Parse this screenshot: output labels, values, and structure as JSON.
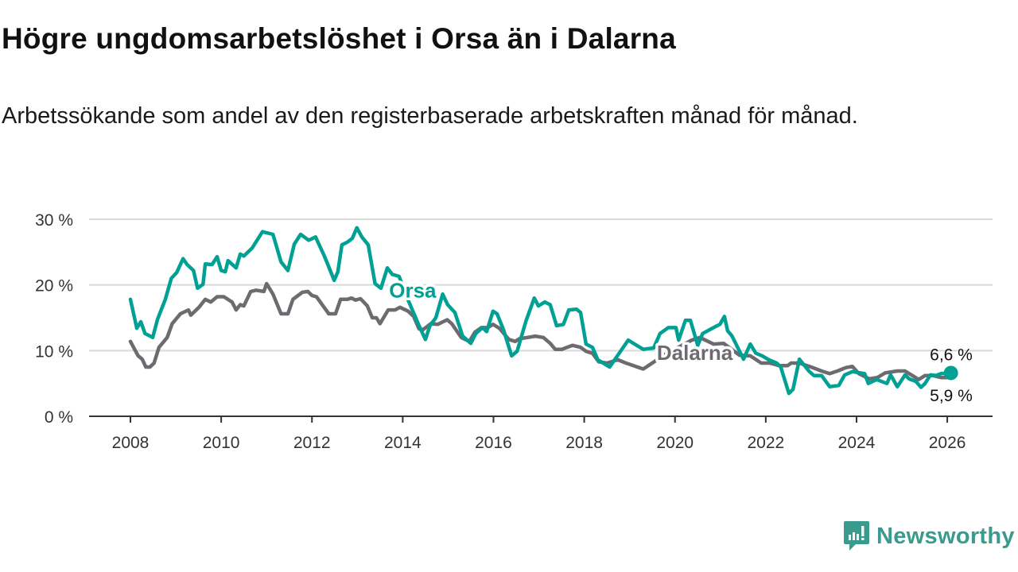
{
  "title": "Högre ungdomsarbetslöshet i Orsa än i Dalarna",
  "subtitle": "Arbetssökande som andel av den registerbaserade arbetskraften månad för månad.",
  "brand": "Newsworthy",
  "chart_data": {
    "type": "line",
    "title": "Högre ungdomsarbetslöshet i Orsa än i Dalarna",
    "xlabel": "",
    "ylabel": "",
    "xlim": [
      2007.1,
      2027.0
    ],
    "ylim": [
      0,
      30
    ],
    "x_ticks": [
      2008,
      2010,
      2012,
      2014,
      2016,
      2018,
      2020,
      2022,
      2024,
      2026
    ],
    "x_tick_labels": [
      "2008",
      "2010",
      "2012",
      "2014",
      "2016",
      "2018",
      "2020",
      "2022",
      "2024",
      "2026"
    ],
    "y_ticks": [
      0,
      10,
      20,
      30
    ],
    "y_tick_labels": [
      "0 %",
      "10 %",
      "20 %",
      "30 %"
    ],
    "grid": true,
    "series": [
      {
        "name": "Dalarna",
        "color": "#6d6a70",
        "label_at": [
          2019.6,
          8.6
        ],
        "end_label": "5,9 %",
        "points": [
          [
            2008.0,
            11.4
          ],
          [
            2008.17,
            9.2
          ],
          [
            2008.26,
            8.7
          ],
          [
            2008.34,
            7.5
          ],
          [
            2008.43,
            7.5
          ],
          [
            2008.52,
            8.1
          ],
          [
            2008.63,
            10.5
          ],
          [
            2008.81,
            12
          ],
          [
            2008.92,
            14.1
          ],
          [
            2009.1,
            15.6
          ],
          [
            2009.28,
            16.2
          ],
          [
            2009.33,
            15.4
          ],
          [
            2009.51,
            16.6
          ],
          [
            2009.65,
            17.8
          ],
          [
            2009.77,
            17.4
          ],
          [
            2009.91,
            18.2
          ],
          [
            2010.06,
            18.2
          ],
          [
            2010.24,
            17.4
          ],
          [
            2010.33,
            16.2
          ],
          [
            2010.42,
            17
          ],
          [
            2010.5,
            16.8
          ],
          [
            2010.65,
            19
          ],
          [
            2010.77,
            19.2
          ],
          [
            2010.94,
            19
          ],
          [
            2011.0,
            20.2
          ],
          [
            2011.14,
            18.6
          ],
          [
            2011.32,
            15.6
          ],
          [
            2011.47,
            15.6
          ],
          [
            2011.58,
            17.8
          ],
          [
            2011.79,
            18.9
          ],
          [
            2011.91,
            19
          ],
          [
            2012.0,
            18.4
          ],
          [
            2012.1,
            18.2
          ],
          [
            2012.37,
            15.6
          ],
          [
            2012.52,
            15.6
          ],
          [
            2012.63,
            17.8
          ],
          [
            2012.78,
            17.8
          ],
          [
            2012.87,
            18
          ],
          [
            2012.96,
            17.7
          ],
          [
            2013.07,
            17.9
          ],
          [
            2013.22,
            16.8
          ],
          [
            2013.33,
            15
          ],
          [
            2013.42,
            15
          ],
          [
            2013.5,
            14.1
          ],
          [
            2013.68,
            16.2
          ],
          [
            2013.83,
            16.2
          ],
          [
            2013.94,
            16.6
          ],
          [
            2014.12,
            16
          ],
          [
            2014.24,
            15.2
          ],
          [
            2014.36,
            13.3
          ],
          [
            2014.45,
            13.2
          ],
          [
            2014.62,
            14.1
          ],
          [
            2014.77,
            14
          ],
          [
            2014.98,
            14.7
          ],
          [
            2015.08,
            14.1
          ],
          [
            2015.29,
            12
          ],
          [
            2015.47,
            11.4
          ],
          [
            2015.59,
            12.8
          ],
          [
            2015.73,
            13.5
          ],
          [
            2015.87,
            13.5
          ],
          [
            2015.99,
            14
          ],
          [
            2016.13,
            13.4
          ],
          [
            2016.34,
            11.7
          ],
          [
            2016.48,
            11.4
          ],
          [
            2016.57,
            11.8
          ],
          [
            2016.75,
            12
          ],
          [
            2016.92,
            12.2
          ],
          [
            2017.1,
            12
          ],
          [
            2017.25,
            11.1
          ],
          [
            2017.36,
            10.2
          ],
          [
            2017.51,
            10.2
          ],
          [
            2017.62,
            10.5
          ],
          [
            2017.74,
            10.8
          ],
          [
            2017.92,
            10.5
          ],
          [
            2018.04,
            9.9
          ],
          [
            2018.18,
            9.6
          ],
          [
            2018.32,
            8.3
          ],
          [
            2018.5,
            8.1
          ],
          [
            2018.74,
            8.6
          ],
          [
            2018.92,
            8.1
          ],
          [
            2019.3,
            7.2
          ],
          [
            2019.8,
            9.5
          ],
          [
            2020.37,
            11.6
          ],
          [
            2020.55,
            12
          ],
          [
            2020.85,
            11
          ],
          [
            2021.07,
            11.1
          ],
          [
            2021.25,
            10.2
          ],
          [
            2021.42,
            9.3
          ],
          [
            2021.66,
            9.2
          ],
          [
            2021.9,
            8.1
          ],
          [
            2022.09,
            8.1
          ],
          [
            2022.3,
            7.7
          ],
          [
            2022.48,
            7.7
          ],
          [
            2022.56,
            8.1
          ],
          [
            2022.74,
            8.1
          ],
          [
            2023.0,
            7.5
          ],
          [
            2023.23,
            6.9
          ],
          [
            2023.41,
            6.5
          ],
          [
            2023.58,
            6.9
          ],
          [
            2023.76,
            7.4
          ],
          [
            2023.91,
            7.6
          ],
          [
            2024.05,
            6.5
          ],
          [
            2024.28,
            5.7
          ],
          [
            2024.46,
            5.9
          ],
          [
            2024.63,
            6.6
          ],
          [
            2024.9,
            6.9
          ],
          [
            2025.07,
            6.9
          ],
          [
            2025.23,
            6.2
          ],
          [
            2025.37,
            5.6
          ],
          [
            2025.51,
            6.2
          ],
          [
            2025.68,
            6.2
          ],
          [
            2025.86,
            5.9
          ],
          [
            2026.08,
            5.9
          ]
        ]
      },
      {
        "name": "Orsa",
        "color": "#00a194",
        "label_at": [
          2013.7,
          18.1
        ],
        "end_label": "6,6 %",
        "points": [
          [
            2008.0,
            17.8
          ],
          [
            2008.14,
            13.4
          ],
          [
            2008.23,
            14.4
          ],
          [
            2008.32,
            12.6
          ],
          [
            2008.49,
            12
          ],
          [
            2008.6,
            14.8
          ],
          [
            2008.77,
            17.8
          ],
          [
            2008.9,
            21
          ],
          [
            2009.02,
            21.9
          ],
          [
            2009.16,
            24
          ],
          [
            2009.25,
            23.1
          ],
          [
            2009.39,
            22.2
          ],
          [
            2009.48,
            19.5
          ],
          [
            2009.6,
            20.1
          ],
          [
            2009.65,
            23.2
          ],
          [
            2009.8,
            23.1
          ],
          [
            2009.91,
            24.3
          ],
          [
            2010.0,
            22.2
          ],
          [
            2010.09,
            22
          ],
          [
            2010.15,
            23.7
          ],
          [
            2010.33,
            22.6
          ],
          [
            2010.42,
            24.7
          ],
          [
            2010.5,
            24.4
          ],
          [
            2010.68,
            25.6
          ],
          [
            2010.91,
            28.1
          ],
          [
            2011.14,
            27.7
          ],
          [
            2011.32,
            23.5
          ],
          [
            2011.47,
            22.2
          ],
          [
            2011.61,
            26.2
          ],
          [
            2011.75,
            27.7
          ],
          [
            2011.93,
            26.8
          ],
          [
            2012.08,
            27.3
          ],
          [
            2012.28,
            24.3
          ],
          [
            2012.49,
            20.7
          ],
          [
            2012.57,
            22
          ],
          [
            2012.66,
            26.1
          ],
          [
            2012.78,
            26.5
          ],
          [
            2012.89,
            27.1
          ],
          [
            2012.99,
            28.7
          ],
          [
            2013.1,
            27.3
          ],
          [
            2013.24,
            26.1
          ],
          [
            2013.39,
            20.2
          ],
          [
            2013.52,
            19.5
          ],
          [
            2013.66,
            22.6
          ],
          [
            2013.77,
            21.6
          ],
          [
            2013.92,
            21.3
          ],
          [
            2014.1,
            18
          ],
          [
            2014.36,
            13.8
          ],
          [
            2014.5,
            11.7
          ],
          [
            2014.6,
            13.8
          ],
          [
            2014.73,
            15
          ],
          [
            2014.88,
            18.6
          ],
          [
            2014.99,
            17
          ],
          [
            2015.15,
            15.8
          ],
          [
            2015.32,
            12.2
          ],
          [
            2015.5,
            11.1
          ],
          [
            2015.61,
            12.6
          ],
          [
            2015.76,
            13.5
          ],
          [
            2015.85,
            12.9
          ],
          [
            2015.99,
            16
          ],
          [
            2016.08,
            15.6
          ],
          [
            2016.22,
            13.2
          ],
          [
            2016.4,
            9.2
          ],
          [
            2016.52,
            9.9
          ],
          [
            2016.72,
            14.6
          ],
          [
            2016.9,
            18
          ],
          [
            2016.99,
            16.8
          ],
          [
            2017.13,
            17.4
          ],
          [
            2017.25,
            17
          ],
          [
            2017.39,
            13.8
          ],
          [
            2017.54,
            14
          ],
          [
            2017.66,
            16.2
          ],
          [
            2017.83,
            16.3
          ],
          [
            2017.92,
            15.8
          ],
          [
            2018.04,
            11
          ],
          [
            2018.18,
            10.5
          ],
          [
            2018.3,
            8.6
          ],
          [
            2018.56,
            7.5
          ],
          [
            2018.74,
            9.3
          ],
          [
            2018.97,
            11.6
          ],
          [
            2019.11,
            11
          ],
          [
            2019.3,
            10.2
          ],
          [
            2019.53,
            10.4
          ],
          [
            2019.67,
            12.6
          ],
          [
            2019.85,
            13.5
          ],
          [
            2020.02,
            13.5
          ],
          [
            2020.08,
            11.6
          ],
          [
            2020.23,
            14.6
          ],
          [
            2020.34,
            14.6
          ],
          [
            2020.5,
            10.8
          ],
          [
            2020.61,
            12.6
          ],
          [
            2020.85,
            13.5
          ],
          [
            2020.99,
            14
          ],
          [
            2021.09,
            15.2
          ],
          [
            2021.16,
            13
          ],
          [
            2021.25,
            12.3
          ],
          [
            2021.51,
            8.7
          ],
          [
            2021.66,
            11
          ],
          [
            2021.78,
            9.6
          ],
          [
            2021.92,
            9.2
          ],
          [
            2022.07,
            8.6
          ],
          [
            2022.24,
            8.1
          ],
          [
            2022.33,
            7.5
          ],
          [
            2022.51,
            3.5
          ],
          [
            2022.6,
            4.1
          ],
          [
            2022.74,
            8.7
          ],
          [
            2022.95,
            6.9
          ],
          [
            2023.06,
            6.2
          ],
          [
            2023.23,
            6.2
          ],
          [
            2023.41,
            4.5
          ],
          [
            2023.61,
            4.7
          ],
          [
            2023.74,
            6.3
          ],
          [
            2023.91,
            6.8
          ],
          [
            2024.18,
            6.5
          ],
          [
            2024.26,
            5
          ],
          [
            2024.44,
            5.6
          ],
          [
            2024.67,
            5
          ],
          [
            2024.75,
            6.3
          ],
          [
            2024.9,
            4.5
          ],
          [
            2025.07,
            6.3
          ],
          [
            2025.16,
            5.7
          ],
          [
            2025.31,
            5.3
          ],
          [
            2025.42,
            4.4
          ],
          [
            2025.51,
            5
          ],
          [
            2025.63,
            6.3
          ],
          [
            2025.75,
            6.2
          ],
          [
            2025.86,
            6.5
          ],
          [
            2026.08,
            6.6
          ]
        ]
      }
    ]
  }
}
